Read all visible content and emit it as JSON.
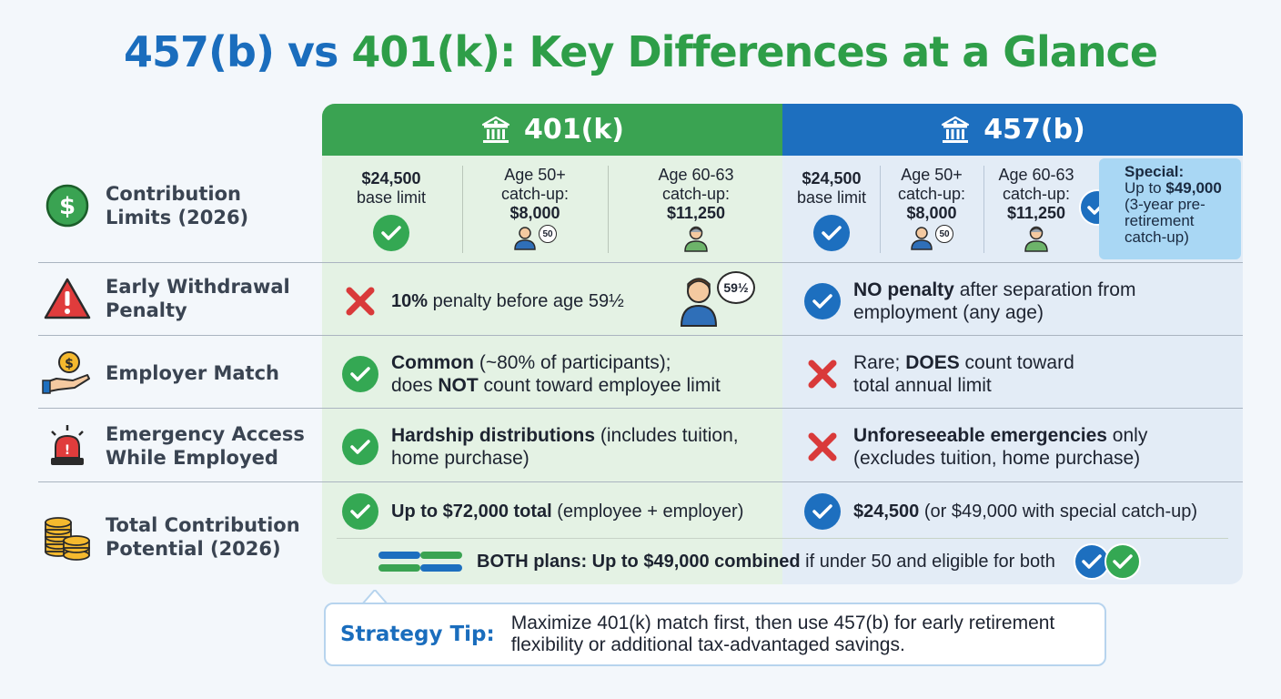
{
  "title": {
    "part_blue_a": "457(b)",
    "part_blue_b": " vs ",
    "part_green": "401(k): Key Differences at a Glance"
  },
  "columns": {
    "plan_a": "401(k)",
    "plan_b": "457(b)"
  },
  "rows": {
    "contribution": {
      "label_line1": "Contribution",
      "label_line2": "Limits (2026)",
      "plan_a": {
        "base_value": "$24,500",
        "base_text": "base limit",
        "age50_line1": "Age 50+",
        "age50_line2": "catch-up:",
        "age50_value": "$8,000",
        "age60_line1": "Age 60-63",
        "age60_line2": "catch-up:",
        "age60_value": "$11,250",
        "badge50": "50"
      },
      "plan_b": {
        "base_value": "$24,500",
        "base_text": "base limit",
        "age50_line1": "Age 50+",
        "age50_line2": "catch-up:",
        "age50_value": "$8,000",
        "age60_line1": "Age 60-63",
        "age60_line2": "catch-up:",
        "age60_value": "$11,250",
        "badge50": "50",
        "special_title": "Special:",
        "special_pre": "Up to ",
        "special_value": "$49,000",
        "special_rest": "(3-year pre-retirement catch-up)"
      }
    },
    "withdrawal": {
      "label_line1": "Early Withdrawal",
      "label_line2": "Penalty",
      "plan_a_bold": "10%",
      "plan_a_rest": " penalty before age 59½",
      "plan_a_badge": "59½",
      "plan_b_bold": "NO penalty",
      "plan_b_rest": " after separation from employment (any age)"
    },
    "match": {
      "label": "Employer Match",
      "plan_a_bold1": "Common",
      "plan_a_rest1": " (~80% of participants);",
      "plan_a_pre2": "does ",
      "plan_a_bold2": "NOT",
      "plan_a_rest2": " count toward employee limit",
      "plan_b_pre1": "Rare; ",
      "plan_b_bold1": "DOES",
      "plan_b_rest1": " count toward",
      "plan_b_line2": "total annual limit"
    },
    "emergency": {
      "label_line1": "Emergency Access",
      "label_line2": "While Employed",
      "plan_a_bold": "Hardship distributions",
      "plan_a_rest": " (includes tuition, home purchase)",
      "plan_b_bold": "Unforeseeable emergencies",
      "plan_b_rest": " only (excludes tuition, home purchase)"
    },
    "total": {
      "label_line1": "Total Contribution",
      "label_line2": "Potential (2026)",
      "plan_a_bold": "Up to $72,000 total",
      "plan_a_rest": " (employee + employer)",
      "plan_b_bold": "$24,500",
      "plan_b_rest": " (or $49,000 with special catch-up)"
    }
  },
  "both": {
    "bold": "BOTH plans: Up to $49,000 combined",
    "rest": " if under 50 and eligible for both"
  },
  "tip": {
    "label": "Strategy Tip:",
    "line1": "Maximize 401(k) match first, then use 457(b) for early retirement",
    "line2": "flexibility or additional tax-advantaged savings."
  },
  "colors": {
    "green": "#3aa352",
    "blue": "#1d6fbf",
    "red": "#d93a3a"
  },
  "icons": [
    "dollar-icon",
    "warning-icon",
    "hand-coin-icon",
    "siren-icon",
    "coin-stack-icon",
    "bank-icon",
    "check-icon",
    "x-icon",
    "person-icon"
  ]
}
